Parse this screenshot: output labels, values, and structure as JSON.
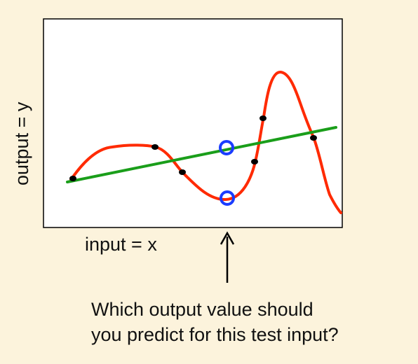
{
  "diagram": {
    "xlabel": "input = x",
    "ylabel": "output = y",
    "question": [
      "Which output value should",
      "you predict for this test input?"
    ],
    "colors": {
      "background": "#fcf3dc",
      "plot_background": "#ffffff",
      "frame": "#000000",
      "curve": "#ff2a00",
      "line": "#1a9e1a",
      "training_points": "#000000",
      "predictions": "#1a3cff",
      "arrow": "#000000"
    },
    "elements": {
      "curve": "overfit-curve",
      "line": "linear-fit",
      "points": "training-points",
      "predictions": "prediction-markers",
      "arrow": "test-input-arrow"
    }
  }
}
